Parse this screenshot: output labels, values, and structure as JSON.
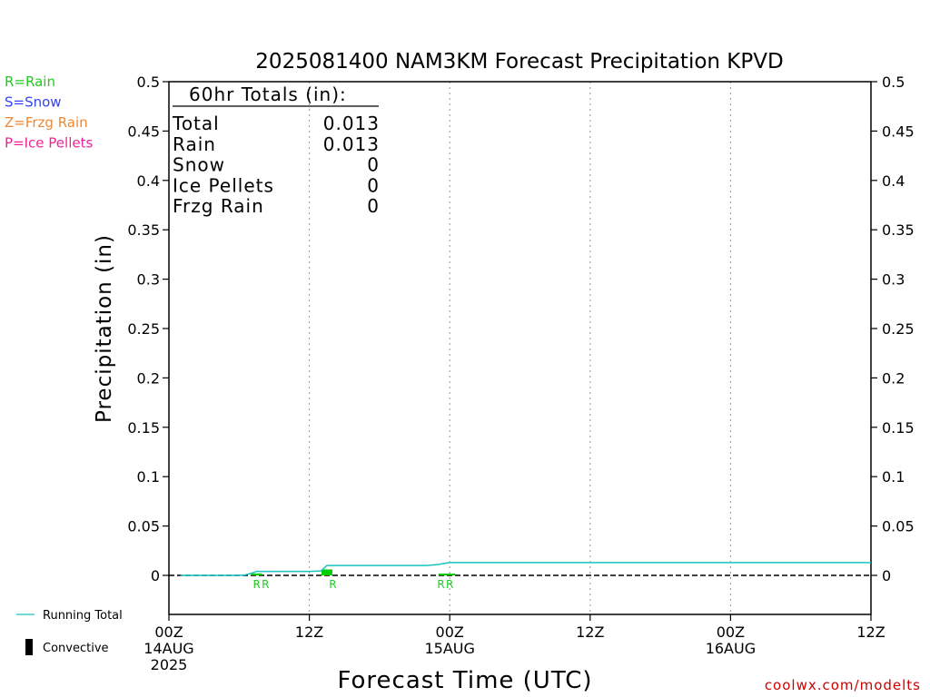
{
  "chart_data": {
    "type": "line",
    "title": "2025081400 NAM3KM Forecast Precipitation KPVD",
    "xlabel": "Forecast Time (UTC)",
    "ylabel": "Precipitation (in)",
    "ylim": [
      0,
      0.5
    ],
    "xlim": [
      0,
      60
    ],
    "y_ticks": [
      "0",
      "0.05",
      "0.1",
      "0.15",
      "0.2",
      "0.25",
      "0.3",
      "0.35",
      "0.4",
      "0.45",
      "0.5"
    ],
    "x_ticks": [
      {
        "x": 0,
        "label": "00Z",
        "date": "14AUG",
        "year": "2025"
      },
      {
        "x": 12,
        "label": "12Z",
        "date": "",
        "year": ""
      },
      {
        "x": 24,
        "label": "00Z",
        "date": "15AUG",
        "year": ""
      },
      {
        "x": 36,
        "label": "12Z",
        "date": "",
        "year": ""
      },
      {
        "x": 48,
        "label": "00Z",
        "date": "16AUG",
        "year": ""
      },
      {
        "x": 60,
        "label": "12Z",
        "date": "",
        "year": ""
      }
    ],
    "grid": "vertical dotted at 12-hour ticks",
    "series": [
      {
        "name": "Running Total",
        "color": "#17c4c4",
        "points": [
          [
            1,
            0
          ],
          [
            6,
            0
          ],
          [
            6.5,
            0.0005
          ],
          [
            7,
            0.002
          ],
          [
            7.5,
            0.004
          ],
          [
            8,
            0.004
          ],
          [
            12,
            0.004
          ],
          [
            13,
            0.0045
          ],
          [
            13.5,
            0.01
          ],
          [
            14,
            0.01
          ],
          [
            22,
            0.01
          ],
          [
            23,
            0.011
          ],
          [
            23.5,
            0.012
          ],
          [
            24,
            0.013
          ],
          [
            60,
            0.013
          ]
        ]
      }
    ],
    "bars": [
      {
        "x": 7.5,
        "value": 0.002,
        "type": "R"
      },
      {
        "x": 13.5,
        "value": 0.006,
        "type": "R"
      },
      {
        "x": 23.5,
        "value": 0.0005,
        "type": "R"
      },
      {
        "x": 24.0,
        "value": 0.0005,
        "type": "R"
      }
    ],
    "ptype_marks": [
      {
        "x": 7.5,
        "label": "R"
      },
      {
        "x": 8.25,
        "label": "R"
      },
      {
        "x": 14.0,
        "label": "R"
      },
      {
        "x": 23.25,
        "label": "R"
      },
      {
        "x": 24.0,
        "label": "R"
      }
    ]
  },
  "totals_box": {
    "heading": "60hr Totals (in):",
    "rows": [
      {
        "label": "Total",
        "value": "0.013"
      },
      {
        "label": "Rain",
        "value": "0.013"
      },
      {
        "label": "Snow",
        "value": "0"
      },
      {
        "label": "Ice Pellets",
        "value": "0"
      },
      {
        "label": "Frzg Rain",
        "value": "0"
      }
    ]
  },
  "ptype_legend": [
    {
      "text": "R=Rain",
      "color": "#22cc22"
    },
    {
      "text": "S=Snow",
      "color": "#3344ee"
    },
    {
      "text": "Z=Frzg Rain",
      "color": "#ee8833"
    },
    {
      "text": "P=Ice Pellets",
      "color": "#ee2299"
    }
  ],
  "bottom_legend": {
    "running_total": "Running Total",
    "convective": "Convective"
  },
  "credit": "coolwx.com/modelts",
  "colors": {
    "rain_bar": "#00cc00",
    "running_total": "#17c4c4",
    "credit": "#cc0000"
  }
}
